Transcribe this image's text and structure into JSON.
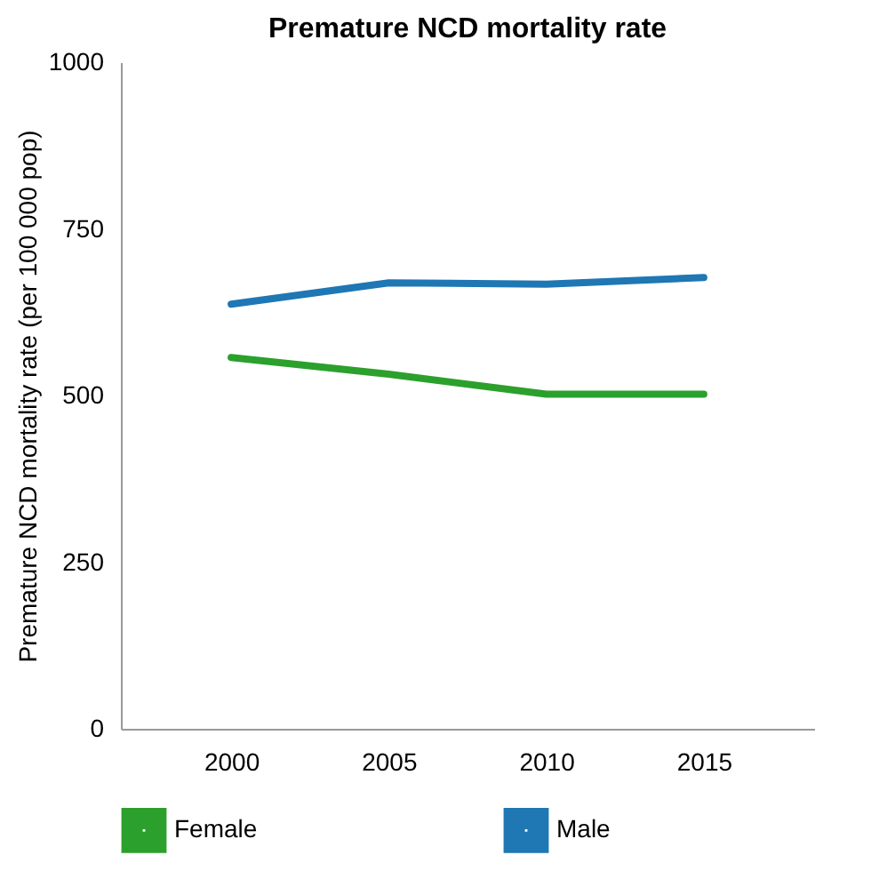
{
  "chart_data": {
    "type": "line",
    "title": "Premature NCD mortality rate",
    "ylabel": "Premature NCD mortality rate (per 100 000 pop)",
    "categories": [
      "2000",
      "2005",
      "2010",
      "2015"
    ],
    "series": [
      {
        "name": "Female",
        "color": "#2ca02c",
        "values": [
          557,
          532,
          502,
          502
        ]
      },
      {
        "name": "Male",
        "color": "#1f77b4",
        "values": [
          637,
          669,
          667,
          677
        ]
      }
    ],
    "ylim": [
      0,
      1000
    ],
    "yticks": [
      0,
      250,
      500,
      750,
      1000
    ],
    "grid": false,
    "legend": "bottom",
    "marker": "none",
    "line_style": "solid"
  }
}
